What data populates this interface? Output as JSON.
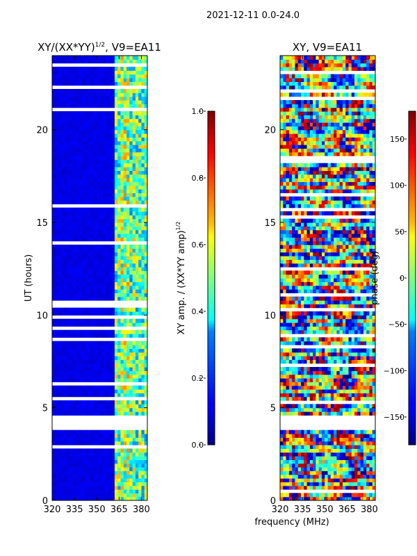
{
  "suptitle": "2021-12-11 0.0-24.0",
  "xlabel_shared": "frequency (MHz)",
  "chart_data": [
    {
      "type": "heatmap",
      "title_main": "XY/(XX*YY)",
      "title_sup": "1/2",
      "title_tail": ", V9=EA11",
      "xlabel": "",
      "ylabel": "UT (hours)",
      "xlim": [
        320,
        384
      ],
      "ylim": [
        0,
        24
      ],
      "xticks": [
        "320",
        "335",
        "350",
        "365",
        "380"
      ],
      "xtick_values": [
        320,
        335,
        350,
        365,
        380
      ],
      "yticks": [
        "0",
        "5",
        "10",
        "15",
        "20"
      ],
      "ytick_values": [
        0,
        5,
        10,
        15,
        20
      ],
      "colormap": "jet",
      "colorbar": {
        "label_main": "XY amp. / (XX*YY amp)",
        "label_sup": "1/2",
        "min": 0.0,
        "max": 1.0,
        "ticks": [
          "0.0",
          "0.2",
          "0.4",
          "0.6",
          "0.8",
          "1.0"
        ],
        "tick_values": [
          0.0,
          0.2,
          0.4,
          0.6,
          0.8,
          1.0
        ]
      },
      "pattern": "low amplitude (~0.05) below ~362 MHz, bright speckled amplitude (0.3-0.8) between ~362 and ~380 MHz",
      "gap_band_hours": [
        3.8,
        4.5
      ]
    },
    {
      "type": "heatmap",
      "title_main": "XY, V9=EA11",
      "xlabel": "frequency (MHz)",
      "ylabel": "",
      "xlim": [
        320,
        384
      ],
      "ylim": [
        0,
        24
      ],
      "xticks": [
        "320",
        "335",
        "350",
        "365",
        "380"
      ],
      "xtick_values": [
        320,
        335,
        350,
        365,
        380
      ],
      "yticks": [
        "0",
        "5",
        "10",
        "15",
        "20"
      ],
      "ytick_values": [
        0,
        5,
        10,
        15,
        20
      ],
      "colormap": "jet",
      "colorbar": {
        "label": "phase (deg)",
        "min": -180,
        "max": 180,
        "ticks": [
          "−150",
          "−100",
          "−50",
          "0",
          "50",
          "100",
          "150"
        ],
        "tick_values": [
          -150,
          -100,
          -50,
          0,
          50,
          100,
          150
        ]
      },
      "pattern": "phase varies over full range -180..180 deg, noisy stripes in time",
      "gap_band_hours": [
        3.8,
        4.5
      ]
    }
  ]
}
